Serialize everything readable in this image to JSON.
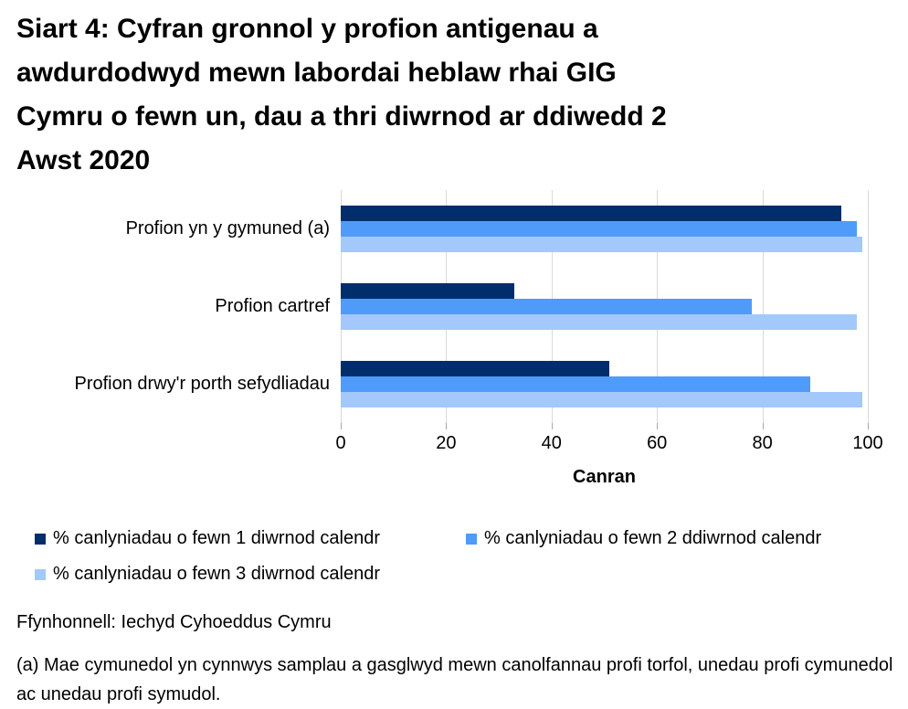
{
  "title_lines": [
    "Siart 4: Cyfran gronnol y profion antigenau a",
    "awdurdodwyd mewn labordai heblaw rhai GIG",
    "Cymru o fewn un, dau a thri diwrnod ar ddiwedd 2",
    "Awst 2020"
  ],
  "chart_data": {
    "type": "bar",
    "orientation": "horizontal",
    "title": "Siart 4: Cyfran gronnol y profion antigenau a awdurdodwyd mewn labordai heblaw rhai GIG Cymru o fewn un, dau a thri diwrnod ar ddiwedd 2 Awst 2020",
    "categories": [
      "Profion yn y gymuned (a)",
      "Profion cartref",
      "Profion drwy'r porth sefydliadau"
    ],
    "series": [
      {
        "name": "% canlyniadau o fewn 1 diwrnod calendr",
        "color": "#002d6b",
        "values": [
          95,
          33,
          51
        ]
      },
      {
        "name": "% canlyniadau o fewn 2 ddiwrnod calendr",
        "color": "#4f9bf9",
        "values": [
          98,
          78,
          89
        ]
      },
      {
        "name": "% canlyniadau o fewn 3 diwrnod calendr",
        "color": "#a3c8fc",
        "values": [
          99,
          98,
          99
        ]
      }
    ],
    "xlabel": "Canran",
    "ylabel": "",
    "xlim": [
      0,
      100
    ],
    "x_ticks": [
      0,
      20,
      40,
      60,
      80,
      100
    ],
    "grid": "vertical",
    "gridline_color": "#d9d9d9",
    "tick_color": "#a6a6a6",
    "legend_position": "bottom"
  },
  "footer": {
    "source": "Ffynhonnell: Iechyd Cyhoeddus Cymru",
    "footnote": "(a) Mae cymunedol yn cynnwys samplau a gasglwyd mewn canolfannau profi torfol, unedau profi cymunedol ac unedau profi symudol."
  }
}
